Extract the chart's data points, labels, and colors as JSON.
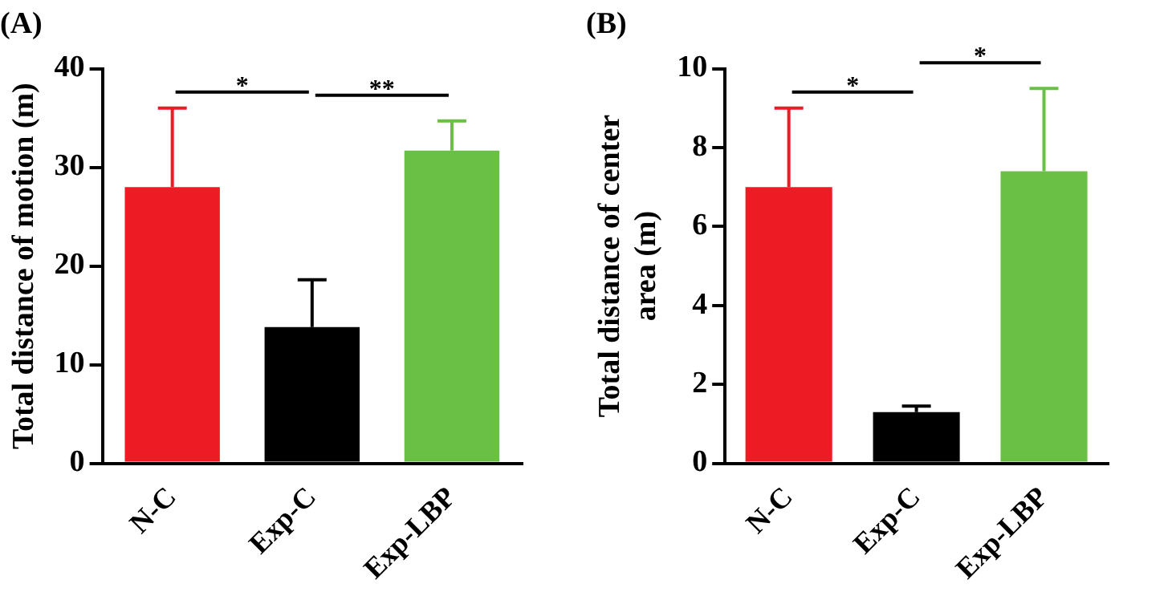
{
  "chart_data": [
    {
      "type": "bar",
      "title": "(A)",
      "ylabel": "Total distance of motion (m)",
      "categories": [
        "N-C",
        "Exp-C",
        "Exp-LBP"
      ],
      "values": [
        28,
        13.8,
        31.7
      ],
      "colors": [
        "#ed1c24",
        "#000000",
        "#6abf45"
      ],
      "errors": [
        [
          28,
          36
        ],
        [
          13.8,
          18.6
        ],
        [
          31.7,
          34.7
        ]
      ],
      "ylim": [
        0,
        40
      ],
      "yticks": [
        0,
        10,
        20,
        30,
        40
      ],
      "annotations": [
        "*",
        "**"
      ]
    },
    {
      "type": "bar",
      "title": "(B)",
      "ylabel": "Total distance of center area (m)",
      "categories": [
        "N-C",
        "Exp-C",
        "Exp-LBP"
      ],
      "values": [
        7,
        1.3,
        7.4
      ],
      "colors": [
        "#ed1c24",
        "#000000",
        "#6abf45"
      ],
      "errors": [
        [
          7,
          9
        ],
        [
          1.3,
          1.45
        ],
        [
          7.4,
          9.5
        ]
      ],
      "ylim": [
        0,
        10
      ],
      "yticks": [
        0,
        2,
        4,
        6,
        8,
        10
      ],
      "annotations": [
        "*",
        "*"
      ]
    }
  ]
}
